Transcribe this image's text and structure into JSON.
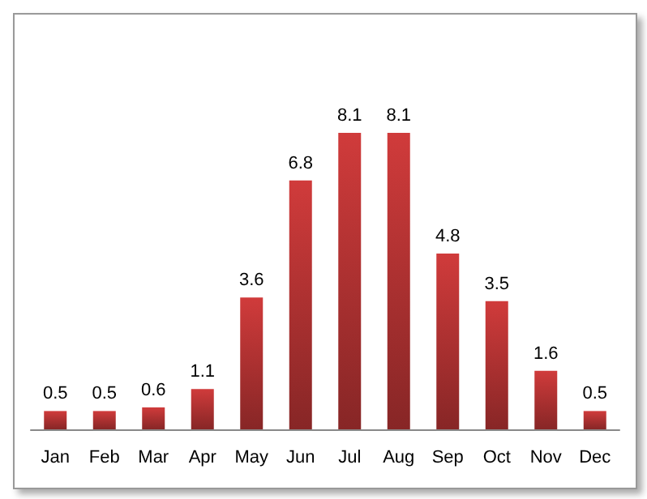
{
  "chart_data": {
    "type": "bar",
    "categories": [
      "Jan",
      "Feb",
      "Mar",
      "Apr",
      "May",
      "Jun",
      "Jul",
      "Aug",
      "Sep",
      "Oct",
      "Nov",
      "Dec"
    ],
    "values": [
      0.5,
      0.5,
      0.6,
      1.1,
      3.6,
      6.8,
      8.1,
      8.1,
      4.8,
      3.5,
      1.6,
      0.5
    ],
    "color": "#d03b3b",
    "data_labels": true
  }
}
